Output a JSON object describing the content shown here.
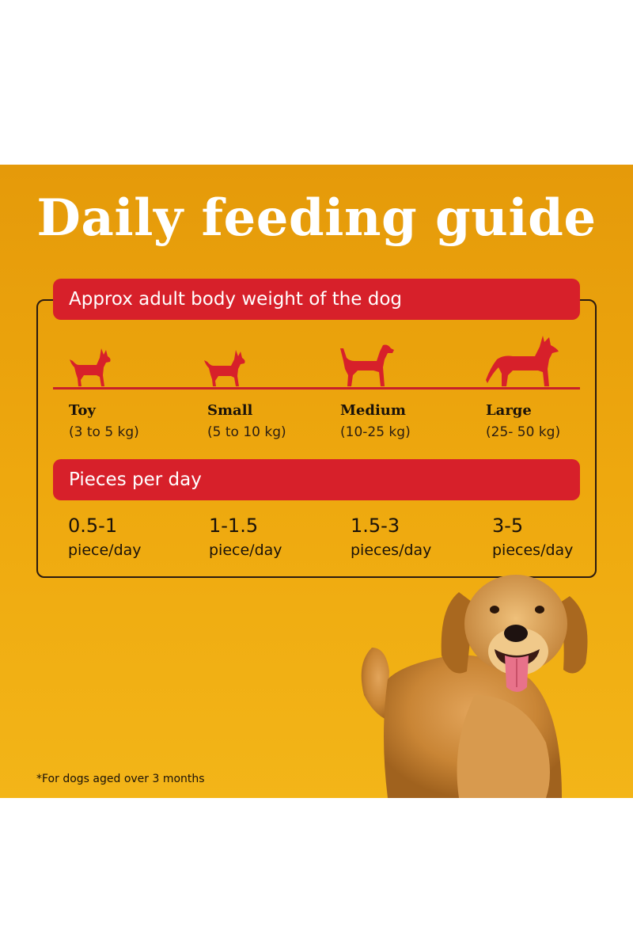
{
  "title": "Daily feeding guide",
  "weight_header": "Approx adult body weight of the dog",
  "pieces_header": "Pieces per day",
  "sizes": [
    {
      "name": "Toy",
      "range": "(3 to 5 kg)",
      "amount": "0.5-1",
      "unit": "piece/day",
      "icon": "toy-dog-icon"
    },
    {
      "name": "Small",
      "range": "(5 to 10 kg)",
      "amount": "1-1.5",
      "unit": "piece/day",
      "icon": "small-dog-icon"
    },
    {
      "name": "Medium",
      "range": "(10-25 kg)",
      "amount": "1.5-3",
      "unit": "pieces/day",
      "icon": "medium-dog-icon"
    },
    {
      "name": "Large",
      "range": "(25- 50 kg)",
      "amount": "3-5",
      "unit": "pieces/day",
      "icon": "large-dog-icon"
    }
  ],
  "footnote": "*For dogs aged over 3 months",
  "colors": {
    "background": "#eea80e",
    "accent_red": "#d7202a",
    "title_text": "#ffffff"
  }
}
